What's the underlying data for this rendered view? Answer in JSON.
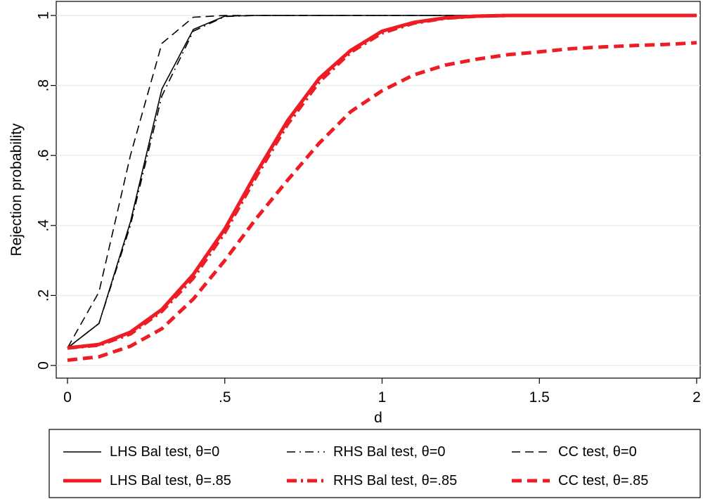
{
  "chart_data": {
    "type": "line",
    "title": "",
    "xlabel": "d",
    "ylabel": "Rejection probability",
    "xlim": [
      0,
      2
    ],
    "ylim": [
      0,
      1
    ],
    "grid": true,
    "legend_position": "bottom",
    "x_ticks": [
      {
        "value": 0,
        "label": "0"
      },
      {
        "value": 0.5,
        "label": ".5"
      },
      {
        "value": 1,
        "label": "1"
      },
      {
        "value": 1.5,
        "label": "1.5"
      },
      {
        "value": 2,
        "label": "2"
      }
    ],
    "y_ticks": [
      {
        "value": 0,
        "label": "0"
      },
      {
        "value": 0.2,
        "label": ".2"
      },
      {
        "value": 0.4,
        "label": ".4"
      },
      {
        "value": 0.6,
        "label": ".6"
      },
      {
        "value": 0.8,
        "label": ".8"
      },
      {
        "value": 1,
        "label": "1"
      }
    ],
    "series": [
      {
        "name": "LHS Bal test, θ=0",
        "color": "#000000",
        "style": "solid",
        "weight": "thin",
        "x": [
          0,
          0.1,
          0.2,
          0.3,
          0.4,
          0.5,
          0.6,
          0.8,
          1.0,
          1.5,
          2.0
        ],
        "y": [
          0.05,
          0.12,
          0.41,
          0.79,
          0.96,
          0.998,
          1,
          1,
          1,
          1,
          1
        ]
      },
      {
        "name": "RHS Bal test, θ=0",
        "color": "#000000",
        "style": "dashdot",
        "weight": "thin",
        "x": [
          0,
          0.1,
          0.2,
          0.3,
          0.4,
          0.5,
          0.6,
          0.8,
          1.0,
          1.5,
          2.0
        ],
        "y": [
          0.05,
          0.12,
          0.4,
          0.77,
          0.955,
          0.997,
          1,
          1,
          1,
          1,
          1
        ]
      },
      {
        "name": "CC test, θ=0",
        "color": "#000000",
        "style": "dash",
        "weight": "thin",
        "x": [
          0,
          0.1,
          0.2,
          0.3,
          0.4,
          0.5,
          0.6,
          0.8,
          1.0,
          1.5,
          2.0
        ],
        "y": [
          0.05,
          0.21,
          0.6,
          0.92,
          0.995,
          1,
          1,
          1,
          1,
          1,
          1
        ]
      },
      {
        "name": "LHS Bal test, θ=.85",
        "color": "#ee1c25",
        "style": "solid",
        "weight": "thick",
        "x": [
          0,
          0.1,
          0.2,
          0.3,
          0.4,
          0.5,
          0.6,
          0.7,
          0.8,
          0.9,
          1.0,
          1.1,
          1.2,
          1.3,
          1.4,
          1.5,
          1.6,
          1.7,
          1.8,
          1.9,
          2.0
        ],
        "y": [
          0.05,
          0.06,
          0.095,
          0.16,
          0.26,
          0.39,
          0.55,
          0.7,
          0.82,
          0.9,
          0.955,
          0.98,
          0.993,
          0.998,
          1,
          1,
          1,
          1,
          1,
          1,
          1
        ]
      },
      {
        "name": "RHS Bal test, θ=.85",
        "color": "#ee1c25",
        "style": "dashdot",
        "weight": "thick",
        "x": [
          0,
          0.1,
          0.2,
          0.3,
          0.4,
          0.5,
          0.6,
          0.7,
          0.8,
          0.9,
          1.0,
          1.1,
          1.2,
          1.3,
          1.4,
          1.5,
          1.6,
          1.7,
          1.8,
          1.9,
          2.0
        ],
        "y": [
          0.05,
          0.058,
          0.09,
          0.155,
          0.25,
          0.38,
          0.54,
          0.69,
          0.81,
          0.895,
          0.95,
          0.978,
          0.992,
          0.998,
          1,
          1,
          1,
          1,
          1,
          1,
          1
        ]
      },
      {
        "name": "CC test, θ=.85",
        "color": "#ee1c25",
        "style": "dash",
        "weight": "thick",
        "x": [
          0,
          0.1,
          0.2,
          0.3,
          0.4,
          0.5,
          0.6,
          0.7,
          0.8,
          0.9,
          1.0,
          1.1,
          1.2,
          1.3,
          1.4,
          1.5,
          1.6,
          1.7,
          1.8,
          1.9,
          2.0
        ],
        "y": [
          0.015,
          0.025,
          0.055,
          0.105,
          0.19,
          0.3,
          0.42,
          0.53,
          0.635,
          0.725,
          0.785,
          0.83,
          0.858,
          0.875,
          0.888,
          0.896,
          0.905,
          0.91,
          0.914,
          0.917,
          0.922
        ]
      }
    ]
  }
}
